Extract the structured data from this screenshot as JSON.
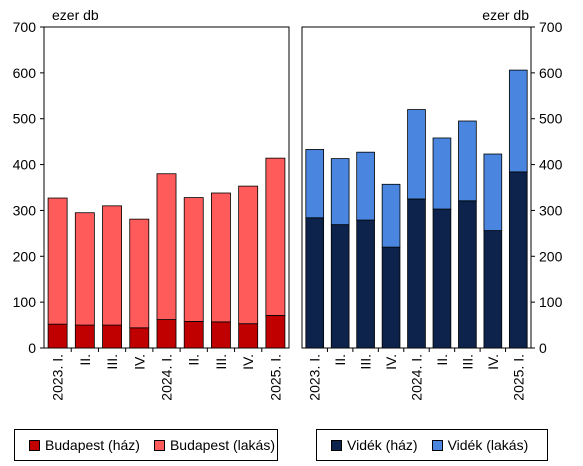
{
  "chart_data": [
    {
      "type": "bar",
      "stacked": true,
      "unit_label": "ezer db",
      "categories": [
        "2023. I.",
        "II.",
        "III.",
        "IV.",
        "2024. I.",
        "II.",
        "III.",
        "IV.",
        "2025. I."
      ],
      "ylim": [
        0,
        700
      ],
      "yticks": [
        "0",
        "100",
        "200",
        "300",
        "400",
        "500",
        "600",
        "700"
      ],
      "y_axis_side": "left",
      "grid": false,
      "series": [
        {
          "name": "Budapest (ház)",
          "color": "#C00000",
          "values": [
            52,
            50,
            50,
            44,
            62,
            58,
            57,
            53,
            71
          ]
        },
        {
          "name": "Budapest (lakás)",
          "color": "#FF5B5B",
          "values": [
            275,
            245,
            260,
            237,
            318,
            270,
            281,
            300,
            343
          ]
        }
      ],
      "legend_position": "bottom"
    },
    {
      "type": "bar",
      "stacked": true,
      "unit_label": "ezer db",
      "categories": [
        "2023. I.",
        "II.",
        "III.",
        "IV.",
        "2024. I.",
        "II.",
        "III.",
        "IV.",
        "2025. I."
      ],
      "ylim": [
        0,
        700
      ],
      "yticks": [
        "0",
        "100",
        "200",
        "300",
        "400",
        "500",
        "600",
        "700"
      ],
      "y_axis_side": "right",
      "grid": false,
      "series": [
        {
          "name": "Vidék (ház)",
          "color": "#0D234B",
          "values": [
            284,
            269,
            279,
            220,
            325,
            303,
            321,
            256,
            384
          ]
        },
        {
          "name": "Vidék (lakás)",
          "color": "#4A86E0",
          "values": [
            149,
            144,
            148,
            137,
            195,
            155,
            174,
            167,
            222
          ]
        }
      ],
      "legend_position": "bottom"
    }
  ]
}
